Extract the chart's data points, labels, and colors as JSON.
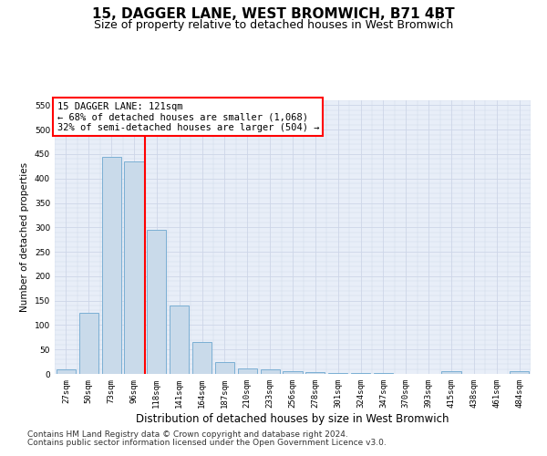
{
  "title": "15, DAGGER LANE, WEST BROMWICH, B71 4BT",
  "subtitle": "Size of property relative to detached houses in West Bromwich",
  "xlabel": "Distribution of detached houses by size in West Bromwich",
  "ylabel": "Number of detached properties",
  "categories": [
    "27sqm",
    "50sqm",
    "73sqm",
    "96sqm",
    "118sqm",
    "141sqm",
    "164sqm",
    "187sqm",
    "210sqm",
    "233sqm",
    "256sqm",
    "278sqm",
    "301sqm",
    "324sqm",
    "347sqm",
    "370sqm",
    "393sqm",
    "415sqm",
    "438sqm",
    "461sqm",
    "484sqm"
  ],
  "values": [
    10,
    125,
    445,
    435,
    295,
    140,
    65,
    25,
    12,
    9,
    5,
    4,
    2,
    1,
    1,
    0,
    0,
    5,
    0,
    0,
    5
  ],
  "bar_color": "#c9daea",
  "bar_edge_color": "#7bafd4",
  "bar_width": 0.85,
  "ylim": [
    0,
    560
  ],
  "yticks": [
    0,
    50,
    100,
    150,
    200,
    250,
    300,
    350,
    400,
    450,
    500,
    550
  ],
  "property_label": "15 DAGGER LANE: 121sqm",
  "annotation_line1": "← 68% of detached houses are smaller (1,068)",
  "annotation_line2": "32% of semi-detached houses are larger (504) →",
  "red_line_x": 3.5,
  "footnote1": "Contains HM Land Registry data © Crown copyright and database right 2024.",
  "footnote2": "Contains public sector information licensed under the Open Government Licence v3.0.",
  "title_fontsize": 11,
  "subtitle_fontsize": 9,
  "xlabel_fontsize": 8.5,
  "ylabel_fontsize": 7.5,
  "tick_fontsize": 6.5,
  "ann_fontsize": 7.5,
  "footnote_fontsize": 6.5,
  "grid_color": "#cdd6e8",
  "background_color": "#e8eef8"
}
